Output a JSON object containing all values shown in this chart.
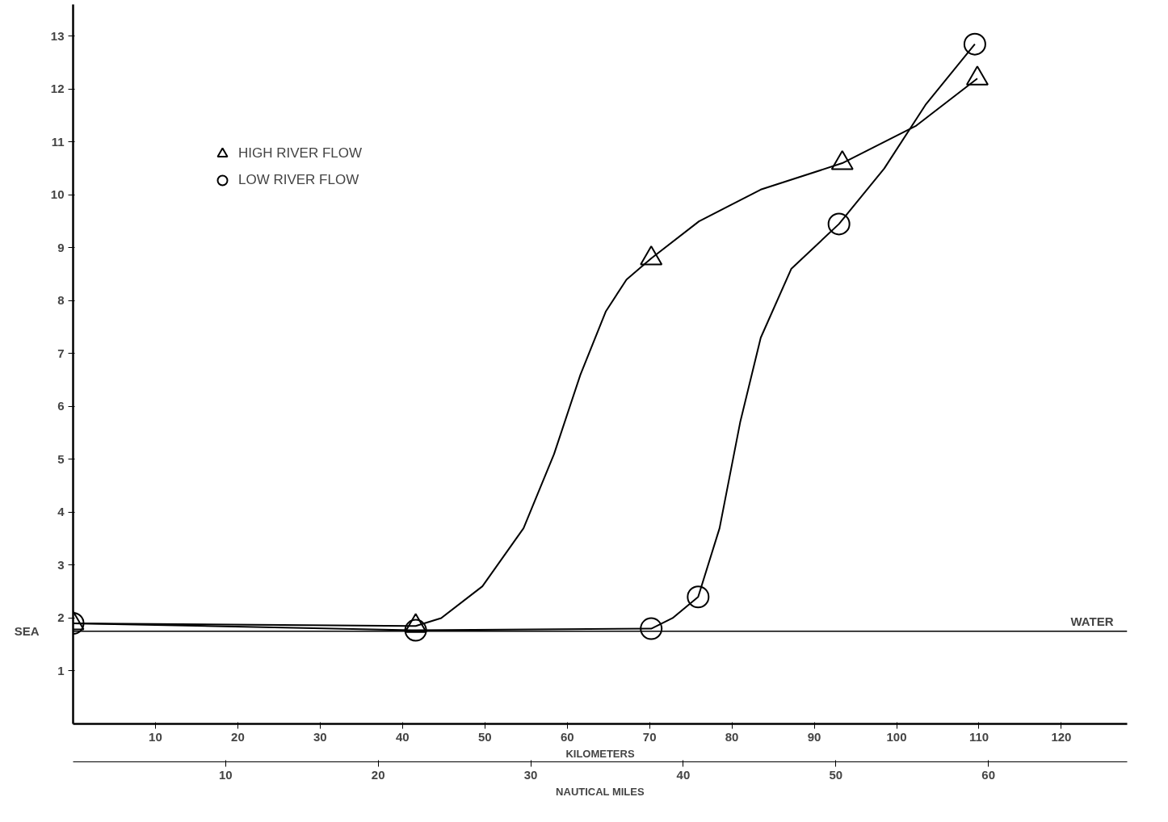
{
  "chart_data": {
    "type": "line",
    "xlabel": "KILOMETERS",
    "x2label": "NAUTICAL MILES",
    "xlim": [
      0,
      128
    ],
    "xticks": [
      10,
      20,
      30,
      40,
      50,
      60,
      70,
      80,
      90,
      100,
      110,
      120
    ],
    "x2lim": [
      0,
      69.1
    ],
    "x2ticks": [
      10,
      20,
      30,
      40,
      50,
      60
    ],
    "ylim": [
      0,
      13.6
    ],
    "yticks": [
      1,
      2,
      3,
      4,
      5,
      6,
      7,
      8,
      9,
      10,
      11,
      12,
      13
    ],
    "grid": false,
    "legend": "top left",
    "series": [
      {
        "color": "#000000",
        "x": [
          0,
          41.6,
          44.7,
          49.7,
          54.7,
          58.4,
          61.6,
          64.7,
          67.2,
          70.2,
          76.0,
          83.5,
          93.4,
          102.3,
          109.8
        ],
        "values": [
          1.9,
          1.85,
          2.0,
          2.6,
          3.7,
          5.1,
          6.6,
          7.8,
          8.4,
          8.8,
          9.5,
          10.1,
          10.6,
          11.3,
          12.2
        ]
      },
      {
        "color": "#000000",
        "x": [
          0,
          41.6,
          70.2,
          72.8,
          75.9,
          78.5,
          81.0,
          83.5,
          87.2,
          93.0,
          98.5,
          103.5,
          109.5
        ],
        "values": [
          1.9,
          1.77,
          1.8,
          2.0,
          2.4,
          3.7,
          5.7,
          7.3,
          8.6,
          9.45,
          10.5,
          11.7,
          12.85
        ]
      },
      {
        "name": "HIGH RIVER FLOW",
        "type": "scatter",
        "color": "#000000",
        "marker": "triangle",
        "x": [
          0,
          41.6,
          70.2,
          93.4,
          109.8
        ],
        "values": [
          1.9,
          1.85,
          8.8,
          10.6,
          12.2
        ]
      },
      {
        "name": "LOW RIVER FLOW",
        "type": "scatter",
        "color": "#000000",
        "marker": "circle",
        "x": [
          0,
          41.6,
          70.2,
          75.9,
          93.0,
          109.5
        ],
        "values": [
          1.9,
          1.77,
          1.8,
          2.4,
          9.45,
          12.85
        ]
      }
    ],
    "ref_lines": [
      {
        "axis": "y",
        "value": 1.75,
        "label": "SEA",
        "color": "#000000"
      }
    ],
    "annotations": [
      {
        "text": "WATER",
        "x": 128,
        "y": 1.75
      }
    ]
  }
}
